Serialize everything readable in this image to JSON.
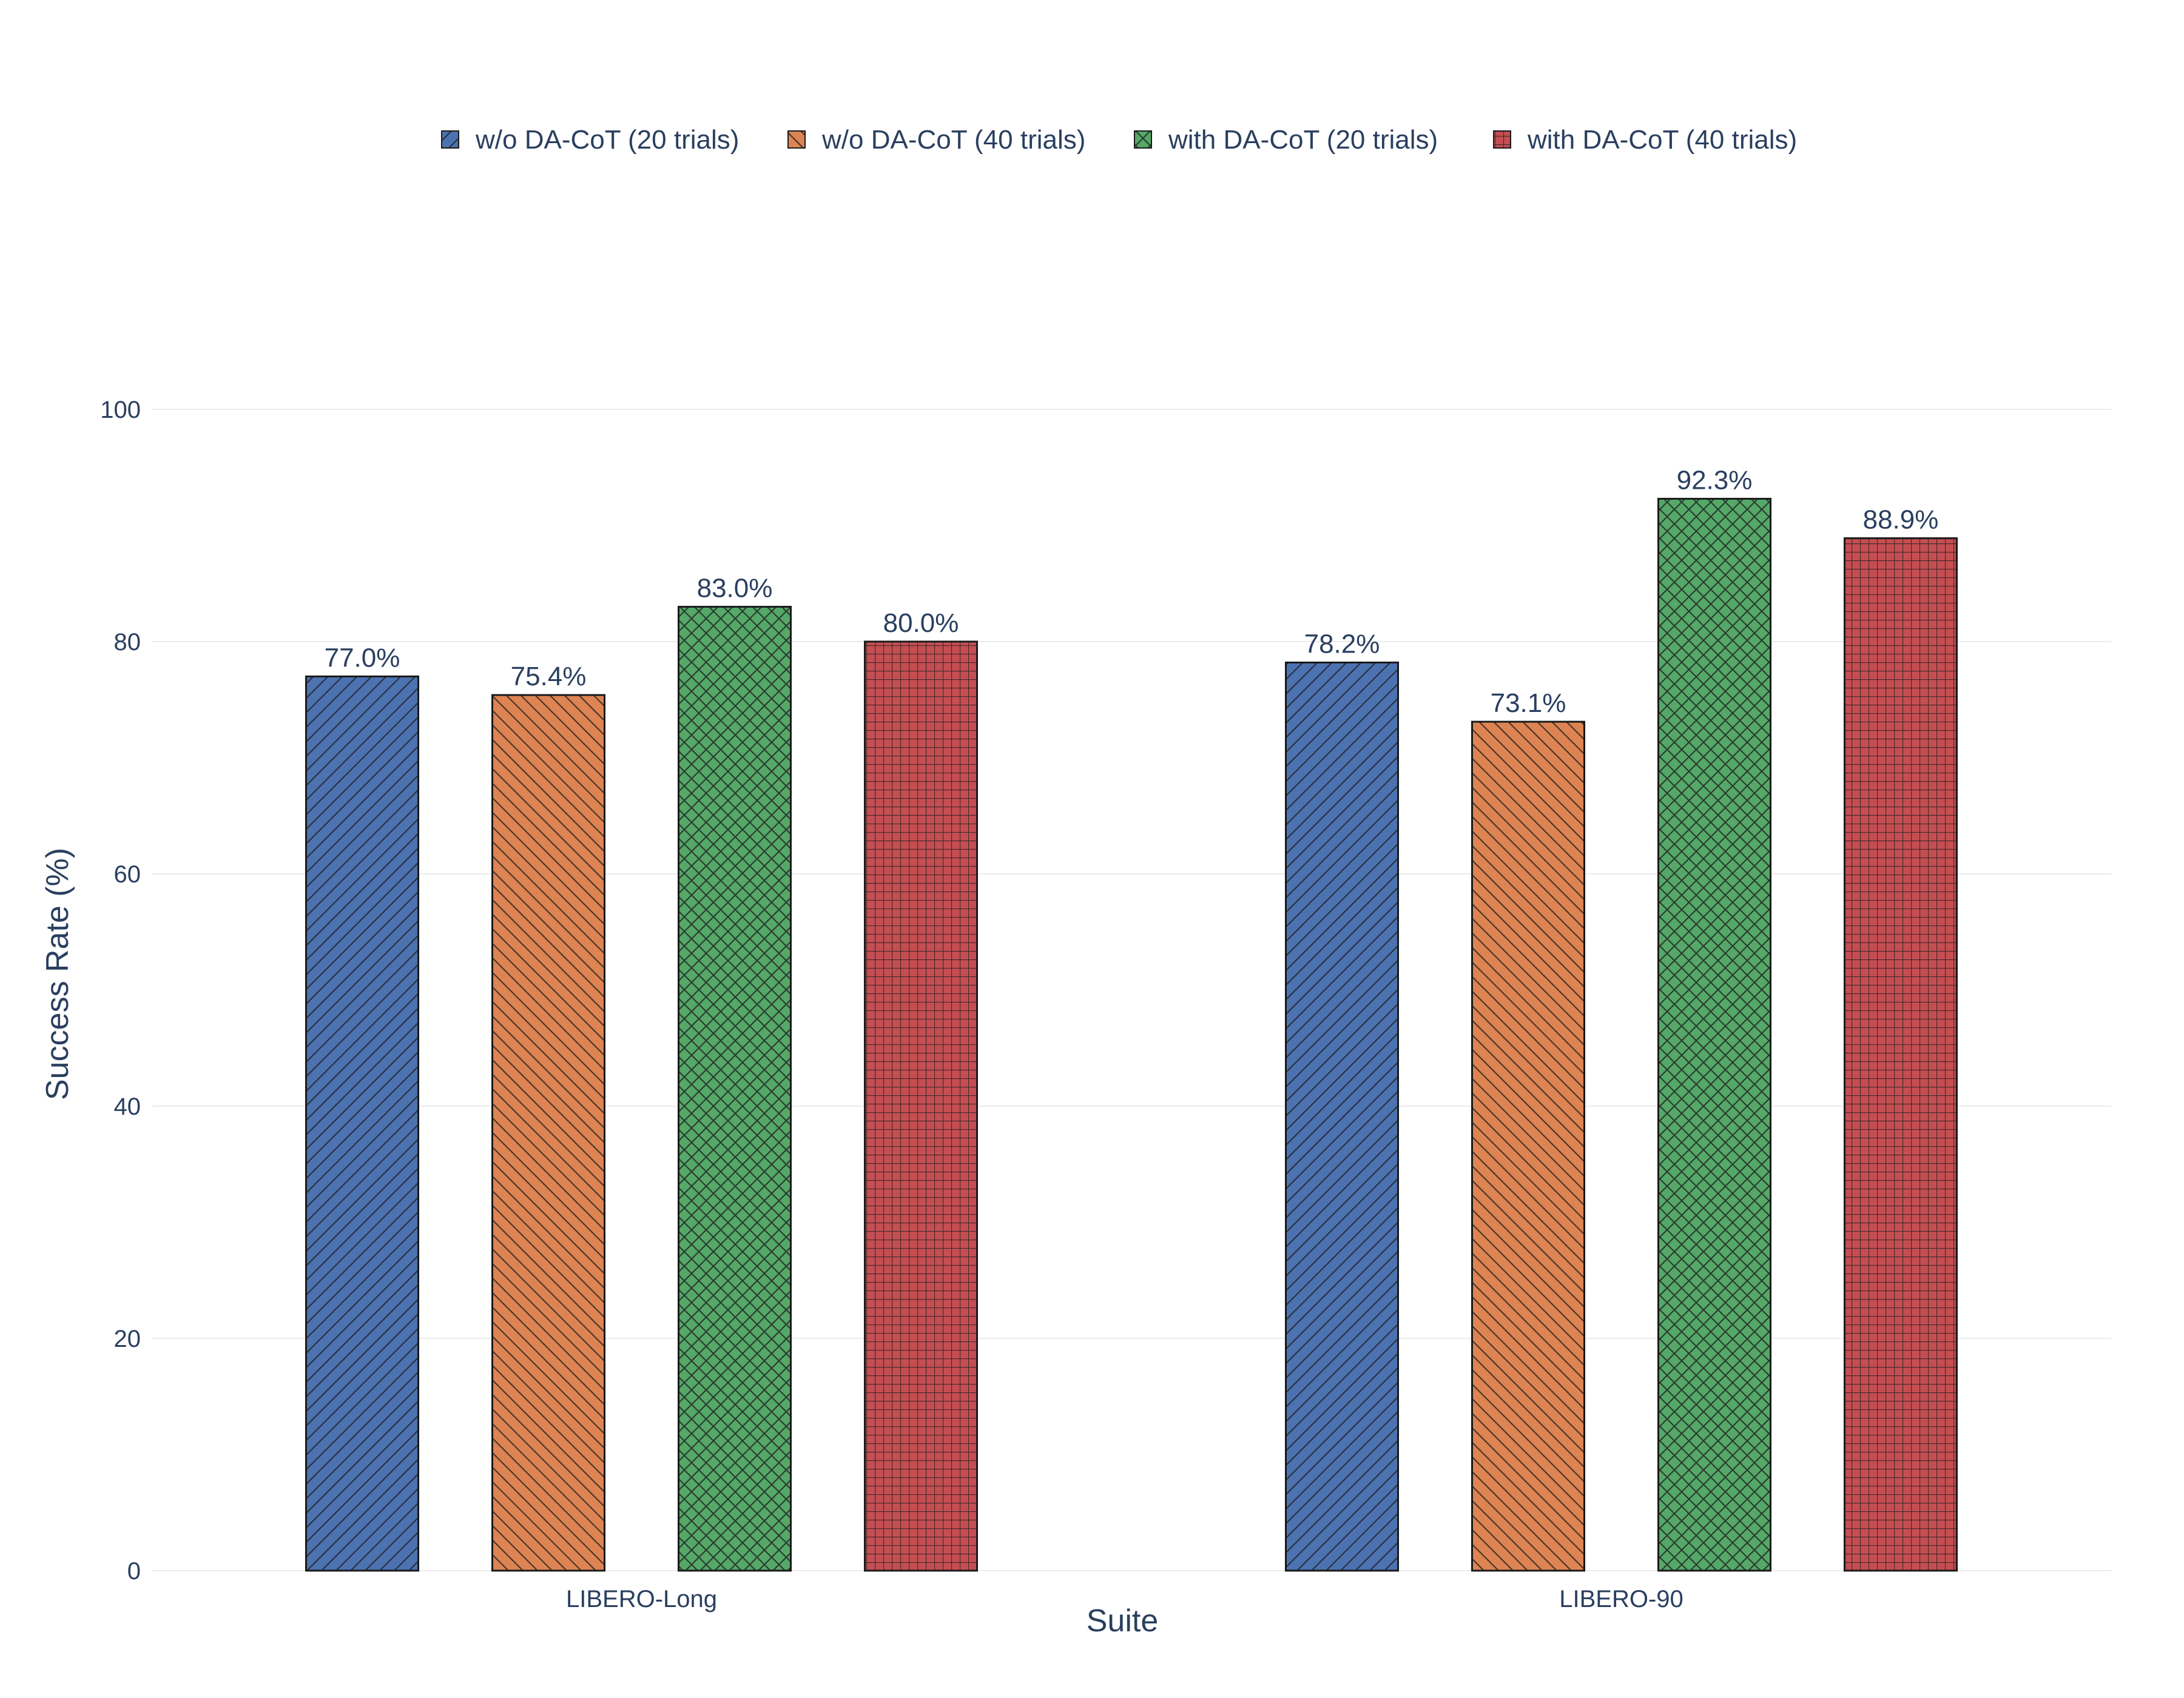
{
  "chart_data": {
    "type": "bar",
    "title": "",
    "xlabel": "Suite",
    "ylabel": "Success Rate (%)",
    "categories": [
      "LIBERO-Long",
      "LIBERO-90"
    ],
    "ylim": [
      0,
      100
    ],
    "yticks": [
      0,
      20,
      40,
      60,
      80,
      100
    ],
    "grid": true,
    "legend_position": "top-center",
    "series": [
      {
        "name": "w/o DA-CoT (20 trials)",
        "values": [
          77.0,
          78.2
        ],
        "labels": [
          "77.0%",
          "78.2%"
        ],
        "color": "#4C72B0",
        "pattern": "diagonal-forward"
      },
      {
        "name": "w/o DA-CoT (40 trials)",
        "values": [
          75.4,
          73.1
        ],
        "labels": [
          "75.4%",
          "73.1%"
        ],
        "color": "#DD8452",
        "pattern": "diagonal-backward"
      },
      {
        "name": "with DA-CoT (20 trials)",
        "values": [
          83.0,
          92.3
        ],
        "labels": [
          "83.0%",
          "92.3%"
        ],
        "color": "#55A868",
        "pattern": "crosshatch-diagonal"
      },
      {
        "name": "with DA-CoT (40 trials)",
        "values": [
          80.0,
          88.9
        ],
        "labels": [
          "80.0%",
          "88.9%"
        ],
        "color": "#C44E52",
        "pattern": "grid"
      }
    ]
  },
  "colors": {
    "text": "#2a3f5f",
    "gridline": "#ebebeb",
    "bar_outline": "#1a1a1a"
  }
}
